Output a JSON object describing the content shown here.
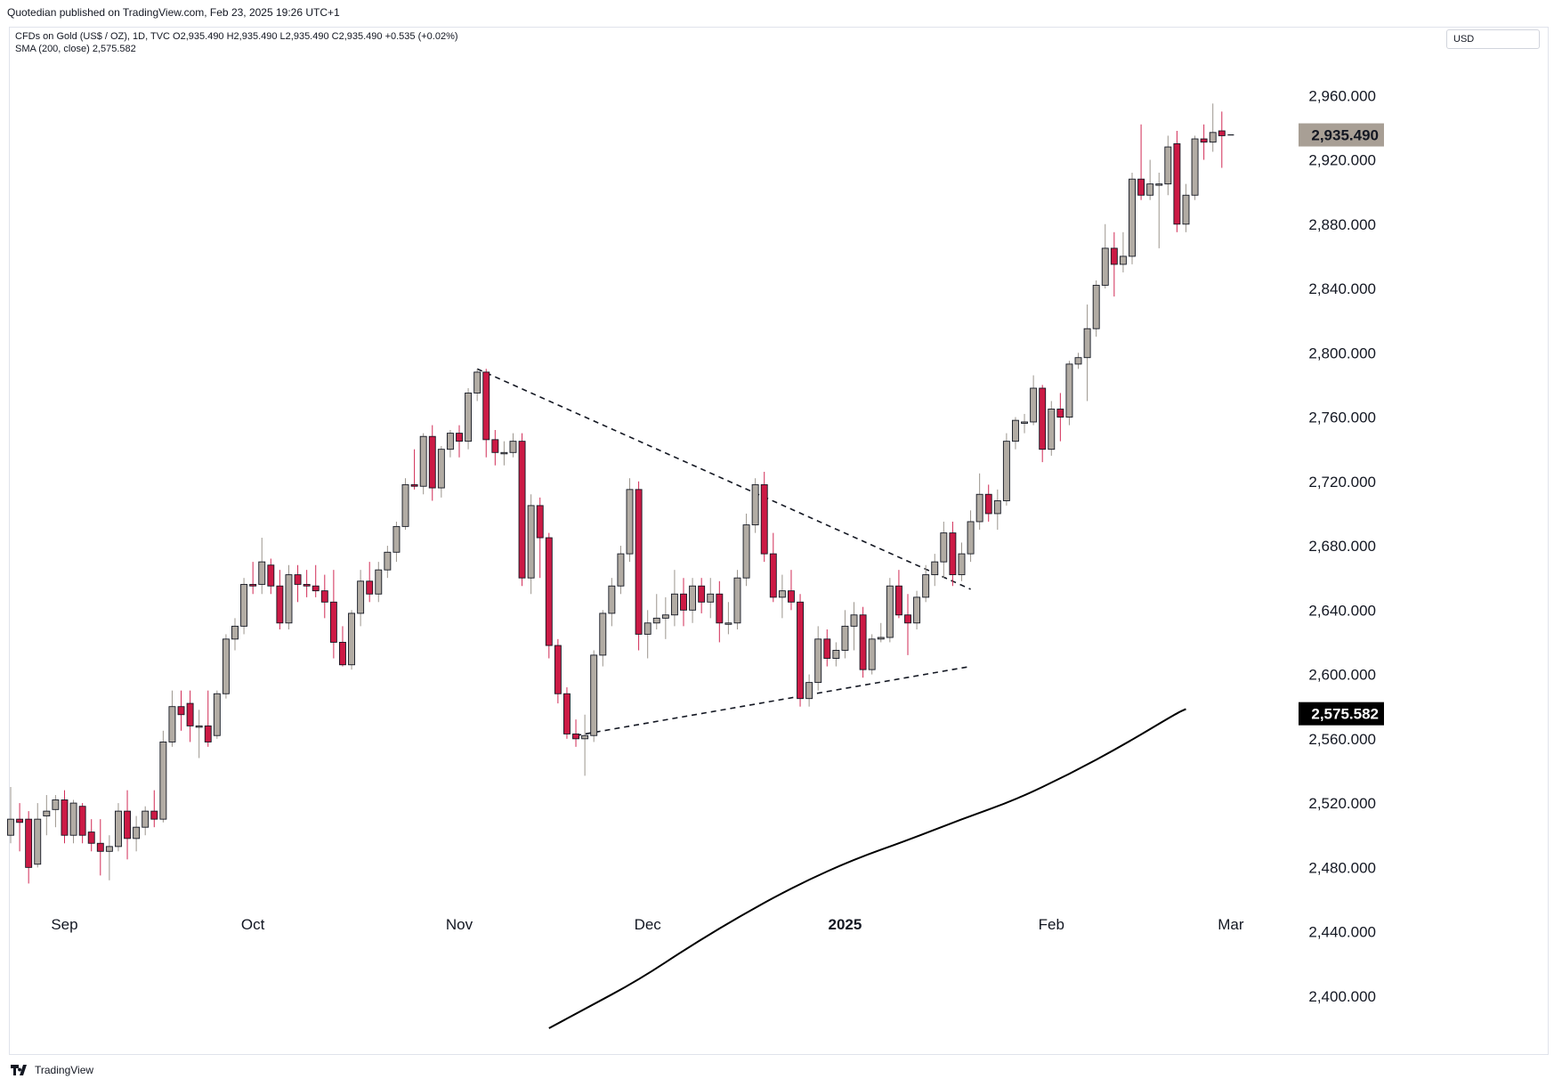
{
  "header": {
    "publisher_line": "Quotedian published on TradingView.com, Feb 23, 2025 19:26 UTC+1"
  },
  "legend": {
    "symbol_line": "CFDs on Gold (US$ / OZ), 1D, TVC  O2,935.490  H2,935.490  L2,935.490  C2,935.490  +0.535 (+0.02%)",
    "sma_line": "SMA (200, close)  2,575.582"
  },
  "currency": "USD",
  "footer": {
    "brand": "TradingView"
  },
  "colors": {
    "up": "#b2aca4",
    "down": "#cc1a45",
    "wick_up": "#9b958d",
    "wick_down": "#d12a55",
    "outline": "#131722",
    "sma": "#000000",
    "price_tag": "#a89f95",
    "sma_tag": "#000000"
  },
  "chart_data": {
    "type": "candlestick",
    "symbol": "CFDs on Gold (US$ / OZ)",
    "interval": "1D",
    "y_axis": {
      "range": [
        2380,
        3000
      ],
      "ticks": [
        "2,400.000",
        "2,440.000",
        "2,480.000",
        "2,520.000",
        "2,560.000",
        "2,600.000",
        "2,640.000",
        "2,680.000",
        "2,720.000",
        "2,760.000",
        "2,800.000",
        "2,840.000",
        "2,880.000",
        "2,920.000",
        "2,960.000"
      ],
      "tick_values": [
        2400,
        2440,
        2480,
        2520,
        2560,
        2600,
        2640,
        2680,
        2720,
        2760,
        2800,
        2840,
        2880,
        2920,
        2960
      ]
    },
    "x_axis": {
      "labels": [
        {
          "text": "Sep",
          "index": 6
        },
        {
          "text": "Oct",
          "index": 27
        },
        {
          "text": "Nov",
          "index": 50
        },
        {
          "text": "Dec",
          "index": 71
        },
        {
          "text": "2025",
          "index": 93
        },
        {
          "text": "Feb",
          "index": 116
        },
        {
          "text": "Mar",
          "index": 136
        }
      ]
    },
    "last_price": {
      "value": 2935.49,
      "label": "2,935.490"
    },
    "sma_last": {
      "value": 2575.582,
      "label": "2,575.582"
    },
    "candles": [
      {
        "o": 2500,
        "h": 2530,
        "l": 2495,
        "c": 2510
      },
      {
        "o": 2510,
        "h": 2520,
        "l": 2490,
        "c": 2508
      },
      {
        "o": 2510,
        "h": 2515,
        "l": 2470,
        "c": 2480
      },
      {
        "o": 2482,
        "h": 2520,
        "l": 2480,
        "c": 2510
      },
      {
        "o": 2512,
        "h": 2525,
        "l": 2500,
        "c": 2515
      },
      {
        "o": 2516,
        "h": 2525,
        "l": 2505,
        "c": 2522
      },
      {
        "o": 2522,
        "h": 2528,
        "l": 2495,
        "c": 2500
      },
      {
        "o": 2500,
        "h": 2522,
        "l": 2495,
        "c": 2520
      },
      {
        "o": 2518,
        "h": 2520,
        "l": 2495,
        "c": 2500
      },
      {
        "o": 2502,
        "h": 2510,
        "l": 2490,
        "c": 2495
      },
      {
        "o": 2495,
        "h": 2510,
        "l": 2475,
        "c": 2490
      },
      {
        "o": 2490,
        "h": 2500,
        "l": 2472,
        "c": 2493
      },
      {
        "o": 2493,
        "h": 2520,
        "l": 2490,
        "c": 2515
      },
      {
        "o": 2515,
        "h": 2528,
        "l": 2485,
        "c": 2498
      },
      {
        "o": 2498,
        "h": 2512,
        "l": 2490,
        "c": 2505
      },
      {
        "o": 2505,
        "h": 2518,
        "l": 2500,
        "c": 2515
      },
      {
        "o": 2515,
        "h": 2528,
        "l": 2505,
        "c": 2510
      },
      {
        "o": 2510,
        "h": 2565,
        "l": 2508,
        "c": 2558
      },
      {
        "o": 2558,
        "h": 2590,
        "l": 2555,
        "c": 2580
      },
      {
        "o": 2580,
        "h": 2590,
        "l": 2565,
        "c": 2575
      },
      {
        "o": 2582,
        "h": 2590,
        "l": 2558,
        "c": 2568
      },
      {
        "o": 2568,
        "h": 2578,
        "l": 2548,
        "c": 2568
      },
      {
        "o": 2568,
        "h": 2590,
        "l": 2555,
        "c": 2558
      },
      {
        "o": 2562,
        "h": 2590,
        "l": 2560,
        "c": 2588
      },
      {
        "o": 2588,
        "h": 2625,
        "l": 2585,
        "c": 2622
      },
      {
        "o": 2622,
        "h": 2635,
        "l": 2615,
        "c": 2630
      },
      {
        "o": 2630,
        "h": 2660,
        "l": 2625,
        "c": 2656
      },
      {
        "o": 2656,
        "h": 2670,
        "l": 2650,
        "c": 2655
      },
      {
        "o": 2656,
        "h": 2685,
        "l": 2650,
        "c": 2670
      },
      {
        "o": 2668,
        "h": 2672,
        "l": 2650,
        "c": 2655
      },
      {
        "o": 2655,
        "h": 2665,
        "l": 2628,
        "c": 2632
      },
      {
        "o": 2632,
        "h": 2668,
        "l": 2628,
        "c": 2662
      },
      {
        "o": 2662,
        "h": 2668,
        "l": 2645,
        "c": 2656
      },
      {
        "o": 2656,
        "h": 2665,
        "l": 2648,
        "c": 2655
      },
      {
        "o": 2655,
        "h": 2668,
        "l": 2648,
        "c": 2652
      },
      {
        "o": 2652,
        "h": 2662,
        "l": 2635,
        "c": 2645
      },
      {
        "o": 2645,
        "h": 2665,
        "l": 2610,
        "c": 2620
      },
      {
        "o": 2620,
        "h": 2630,
        "l": 2605,
        "c": 2606
      },
      {
        "o": 2606,
        "h": 2640,
        "l": 2603,
        "c": 2638
      },
      {
        "o": 2638,
        "h": 2665,
        "l": 2630,
        "c": 2658
      },
      {
        "o": 2658,
        "h": 2670,
        "l": 2645,
        "c": 2650
      },
      {
        "o": 2650,
        "h": 2670,
        "l": 2645,
        "c": 2665
      },
      {
        "o": 2665,
        "h": 2680,
        "l": 2660,
        "c": 2676
      },
      {
        "o": 2676,
        "h": 2695,
        "l": 2670,
        "c": 2692
      },
      {
        "o": 2692,
        "h": 2722,
        "l": 2690,
        "c": 2718
      },
      {
        "o": 2718,
        "h": 2740,
        "l": 2715,
        "c": 2717
      },
      {
        "o": 2717,
        "h": 2750,
        "l": 2712,
        "c": 2748
      },
      {
        "o": 2748,
        "h": 2755,
        "l": 2708,
        "c": 2716
      },
      {
        "o": 2716,
        "h": 2742,
        "l": 2710,
        "c": 2740
      },
      {
        "o": 2740,
        "h": 2752,
        "l": 2735,
        "c": 2750
      },
      {
        "o": 2750,
        "h": 2755,
        "l": 2735,
        "c": 2745
      },
      {
        "o": 2745,
        "h": 2778,
        "l": 2740,
        "c": 2775
      },
      {
        "o": 2775,
        "h": 2790,
        "l": 2770,
        "c": 2788
      },
      {
        "o": 2788,
        "h": 2790,
        "l": 2735,
        "c": 2746
      },
      {
        "o": 2746,
        "h": 2752,
        "l": 2730,
        "c": 2738
      },
      {
        "o": 2738,
        "h": 2745,
        "l": 2730,
        "c": 2738
      },
      {
        "o": 2738,
        "h": 2750,
        "l": 2735,
        "c": 2745
      },
      {
        "o": 2745,
        "h": 2750,
        "l": 2655,
        "c": 2660
      },
      {
        "o": 2660,
        "h": 2712,
        "l": 2650,
        "c": 2705
      },
      {
        "o": 2705,
        "h": 2710,
        "l": 2660,
        "c": 2685
      },
      {
        "o": 2685,
        "h": 2688,
        "l": 2610,
        "c": 2618
      },
      {
        "o": 2618,
        "h": 2622,
        "l": 2582,
        "c": 2588
      },
      {
        "o": 2588,
        "h": 2592,
        "l": 2560,
        "c": 2563
      },
      {
        "o": 2563,
        "h": 2572,
        "l": 2555,
        "c": 2560
      },
      {
        "o": 2560,
        "h": 2575,
        "l": 2537,
        "c": 2562
      },
      {
        "o": 2562,
        "h": 2615,
        "l": 2558,
        "c": 2612
      },
      {
        "o": 2612,
        "h": 2640,
        "l": 2605,
        "c": 2638
      },
      {
        "o": 2638,
        "h": 2660,
        "l": 2630,
        "c": 2655
      },
      {
        "o": 2655,
        "h": 2680,
        "l": 2650,
        "c": 2675
      },
      {
        "o": 2675,
        "h": 2722,
        "l": 2670,
        "c": 2715
      },
      {
        "o": 2715,
        "h": 2720,
        "l": 2615,
        "c": 2625
      },
      {
        "o": 2625,
        "h": 2640,
        "l": 2610,
        "c": 2632
      },
      {
        "o": 2632,
        "h": 2650,
        "l": 2628,
        "c": 2635
      },
      {
        "o": 2635,
        "h": 2648,
        "l": 2622,
        "c": 2637
      },
      {
        "o": 2637,
        "h": 2665,
        "l": 2630,
        "c": 2650
      },
      {
        "o": 2650,
        "h": 2660,
        "l": 2630,
        "c": 2640
      },
      {
        "o": 2640,
        "h": 2660,
        "l": 2632,
        "c": 2655
      },
      {
        "o": 2655,
        "h": 2660,
        "l": 2638,
        "c": 2645
      },
      {
        "o": 2645,
        "h": 2660,
        "l": 2635,
        "c": 2650
      },
      {
        "o": 2650,
        "h": 2658,
        "l": 2620,
        "c": 2632
      },
      {
        "o": 2632,
        "h": 2645,
        "l": 2625,
        "c": 2632
      },
      {
        "o": 2632,
        "h": 2665,
        "l": 2628,
        "c": 2660
      },
      {
        "o": 2660,
        "h": 2700,
        "l": 2655,
        "c": 2693
      },
      {
        "o": 2693,
        "h": 2722,
        "l": 2688,
        "c": 2718
      },
      {
        "o": 2718,
        "h": 2726,
        "l": 2670,
        "c": 2675
      },
      {
        "o": 2675,
        "h": 2688,
        "l": 2645,
        "c": 2648
      },
      {
        "o": 2648,
        "h": 2662,
        "l": 2635,
        "c": 2652
      },
      {
        "o": 2652,
        "h": 2665,
        "l": 2640,
        "c": 2645
      },
      {
        "o": 2645,
        "h": 2650,
        "l": 2580,
        "c": 2585
      },
      {
        "o": 2585,
        "h": 2600,
        "l": 2580,
        "c": 2595
      },
      {
        "o": 2595,
        "h": 2630,
        "l": 2590,
        "c": 2622
      },
      {
        "o": 2622,
        "h": 2628,
        "l": 2605,
        "c": 2610
      },
      {
        "o": 2610,
        "h": 2620,
        "l": 2605,
        "c": 2615
      },
      {
        "o": 2615,
        "h": 2640,
        "l": 2610,
        "c": 2630
      },
      {
        "o": 2630,
        "h": 2645,
        "l": 2615,
        "c": 2637
      },
      {
        "o": 2637,
        "h": 2642,
        "l": 2598,
        "c": 2603
      },
      {
        "o": 2603,
        "h": 2625,
        "l": 2600,
        "c": 2622
      },
      {
        "o": 2622,
        "h": 2632,
        "l": 2620,
        "c": 2623
      },
      {
        "o": 2623,
        "h": 2660,
        "l": 2620,
        "c": 2655
      },
      {
        "o": 2655,
        "h": 2665,
        "l": 2635,
        "c": 2637
      },
      {
        "o": 2637,
        "h": 2650,
        "l": 2612,
        "c": 2632
      },
      {
        "o": 2632,
        "h": 2652,
        "l": 2628,
        "c": 2648
      },
      {
        "o": 2648,
        "h": 2668,
        "l": 2645,
        "c": 2662
      },
      {
        "o": 2662,
        "h": 2675,
        "l": 2655,
        "c": 2670
      },
      {
        "o": 2670,
        "h": 2695,
        "l": 2660,
        "c": 2688
      },
      {
        "o": 2688,
        "h": 2695,
        "l": 2655,
        "c": 2662
      },
      {
        "o": 2662,
        "h": 2682,
        "l": 2658,
        "c": 2675
      },
      {
        "o": 2675,
        "h": 2702,
        "l": 2670,
        "c": 2695
      },
      {
        "o": 2695,
        "h": 2725,
        "l": 2690,
        "c": 2712
      },
      {
        "o": 2712,
        "h": 2718,
        "l": 2695,
        "c": 2700
      },
      {
        "o": 2700,
        "h": 2715,
        "l": 2690,
        "c": 2708
      },
      {
        "o": 2708,
        "h": 2750,
        "l": 2705,
        "c": 2745
      },
      {
        "o": 2745,
        "h": 2760,
        "l": 2740,
        "c": 2758
      },
      {
        "o": 2757,
        "h": 2762,
        "l": 2750,
        "c": 2757
      },
      {
        "o": 2757,
        "h": 2786,
        "l": 2755,
        "c": 2778
      },
      {
        "o": 2778,
        "h": 2780,
        "l": 2732,
        "c": 2740
      },
      {
        "o": 2740,
        "h": 2770,
        "l": 2736,
        "c": 2765
      },
      {
        "o": 2765,
        "h": 2775,
        "l": 2745,
        "c": 2760
      },
      {
        "o": 2760,
        "h": 2795,
        "l": 2755,
        "c": 2793
      },
      {
        "o": 2793,
        "h": 2800,
        "l": 2790,
        "c": 2797
      },
      {
        "o": 2797,
        "h": 2830,
        "l": 2770,
        "c": 2815
      },
      {
        "o": 2815,
        "h": 2845,
        "l": 2810,
        "c": 2842
      },
      {
        "o": 2842,
        "h": 2880,
        "l": 2840,
        "c": 2865
      },
      {
        "o": 2865,
        "h": 2875,
        "l": 2835,
        "c": 2855
      },
      {
        "o": 2855,
        "h": 2875,
        "l": 2850,
        "c": 2860
      },
      {
        "o": 2860,
        "h": 2912,
        "l": 2855,
        "c": 2908
      },
      {
        "o": 2908,
        "h": 2942,
        "l": 2895,
        "c": 2898
      },
      {
        "o": 2898,
        "h": 2920,
        "l": 2895,
        "c": 2905
      },
      {
        "o": 2905,
        "h": 2912,
        "l": 2865,
        "c": 2905
      },
      {
        "o": 2905,
        "h": 2935,
        "l": 2898,
        "c": 2928
      },
      {
        "o": 2930,
        "h": 2938,
        "l": 2875,
        "c": 2880
      },
      {
        "o": 2880,
        "h": 2905,
        "l": 2875,
        "c": 2898
      },
      {
        "o": 2898,
        "h": 2935,
        "l": 2895,
        "c": 2933
      },
      {
        "o": 2933,
        "h": 2942,
        "l": 2920,
        "c": 2931
      },
      {
        "o": 2931,
        "h": 2955,
        "l": 2925,
        "c": 2937
      },
      {
        "o": 2938,
        "h": 2950,
        "l": 2915,
        "c": 2935
      },
      {
        "o": 2935.49,
        "h": 2935.49,
        "l": 2935.49,
        "c": 2935.49
      }
    ],
    "sma_points": [
      {
        "i": 60,
        "v": 2380
      },
      {
        "i": 64,
        "v": 2392
      },
      {
        "i": 70,
        "v": 2410
      },
      {
        "i": 76,
        "v": 2432
      },
      {
        "i": 82,
        "v": 2452
      },
      {
        "i": 88,
        "v": 2470
      },
      {
        "i": 94,
        "v": 2485
      },
      {
        "i": 100,
        "v": 2497
      },
      {
        "i": 106,
        "v": 2510
      },
      {
        "i": 112,
        "v": 2522
      },
      {
        "i": 118,
        "v": 2538
      },
      {
        "i": 124,
        "v": 2556
      },
      {
        "i": 130,
        "v": 2576
      },
      {
        "i": 131,
        "v": 2578.5
      }
    ],
    "trendlines": [
      {
        "from": {
          "i": 52,
          "v": 2790
        },
        "to": {
          "i": 107,
          "v": 2653
        }
      },
      {
        "from": {
          "i": 63,
          "v": 2562
        },
        "to": {
          "i": 107,
          "v": 2605
        }
      }
    ]
  }
}
